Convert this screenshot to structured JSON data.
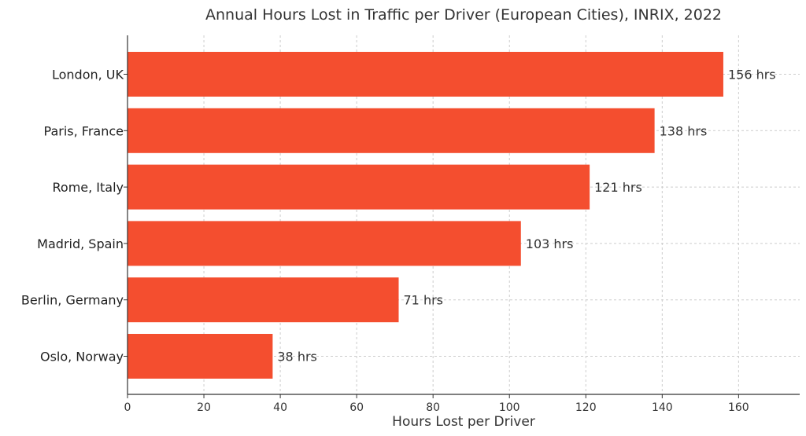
{
  "chart_data": {
    "type": "bar",
    "orientation": "horizontal",
    "title": "Annual Hours Lost in Traffic per Driver (European Cities), INRIX, 2022",
    "xlabel": "Hours Lost per Driver",
    "ylabel": "",
    "categories": [
      "London, UK",
      "Paris, France",
      "Rome, Italy",
      "Madrid, Spain",
      "Berlin, Germany",
      "Oslo, Norway"
    ],
    "values": [
      156,
      138,
      121,
      103,
      71,
      38
    ],
    "data_labels": [
      "156 hrs",
      "138 hrs",
      "121 hrs",
      "103 hrs",
      "71 hrs",
      "38 hrs"
    ],
    "xlim": [
      0,
      176
    ],
    "xticks": [
      0,
      20,
      40,
      60,
      80,
      100,
      120,
      140,
      160
    ],
    "xtick_labels": [
      "0",
      "20",
      "40",
      "60",
      "80",
      "100",
      "120",
      "140",
      "160"
    ],
    "bar_color": "#f44e2f",
    "grid": true
  }
}
